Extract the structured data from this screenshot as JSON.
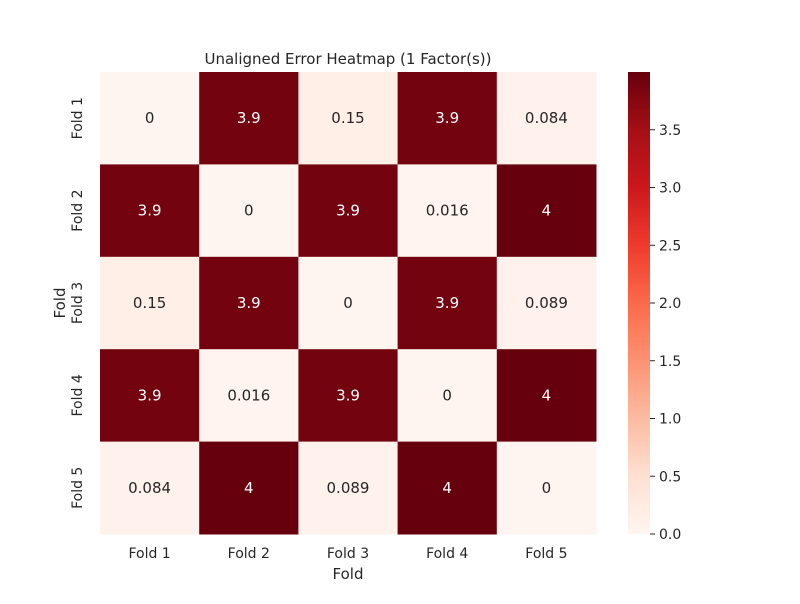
{
  "chart_data": {
    "type": "heatmap",
    "title": "Unaligned Error Heatmap (1 Factor(s))",
    "xlabel": "Fold",
    "ylabel": "Fold",
    "x_categories": [
      "Fold 1",
      "Fold 2",
      "Fold 3",
      "Fold 4",
      "Fold 5"
    ],
    "y_categories": [
      "Fold 1",
      "Fold 2",
      "Fold 3",
      "Fold 4",
      "Fold 5"
    ],
    "values": [
      [
        0,
        3.9,
        0.15,
        3.9,
        0.084
      ],
      [
        3.9,
        0,
        3.9,
        0.016,
        4
      ],
      [
        0.15,
        3.9,
        0,
        3.9,
        0.089
      ],
      [
        3.9,
        0.016,
        3.9,
        0,
        4
      ],
      [
        0.084,
        4,
        0.089,
        4,
        0
      ]
    ],
    "value_labels": [
      [
        "0",
        "3.9",
        "0.15",
        "3.9",
        "0.084"
      ],
      [
        "3.9",
        "0",
        "3.9",
        "0.016",
        "4"
      ],
      [
        "0.15",
        "3.9",
        "0",
        "3.9",
        "0.089"
      ],
      [
        "3.9",
        "0.016",
        "3.9",
        "0",
        "4"
      ],
      [
        "0.084",
        "4",
        "0.089",
        "4",
        "0"
      ]
    ],
    "colorbar": {
      "min": 0,
      "max": 4,
      "ticks": [
        "0.0",
        "0.5",
        "1.0",
        "1.5",
        "2.0",
        "2.5",
        "3.0",
        "3.5"
      ]
    },
    "colormap": [
      "#fff5f0",
      "#fee0d2",
      "#fcbba1",
      "#fc9272",
      "#fb6a4a",
      "#ef3b2c",
      "#cb181d",
      "#a50f15",
      "#67000d"
    ],
    "grid": false
  }
}
